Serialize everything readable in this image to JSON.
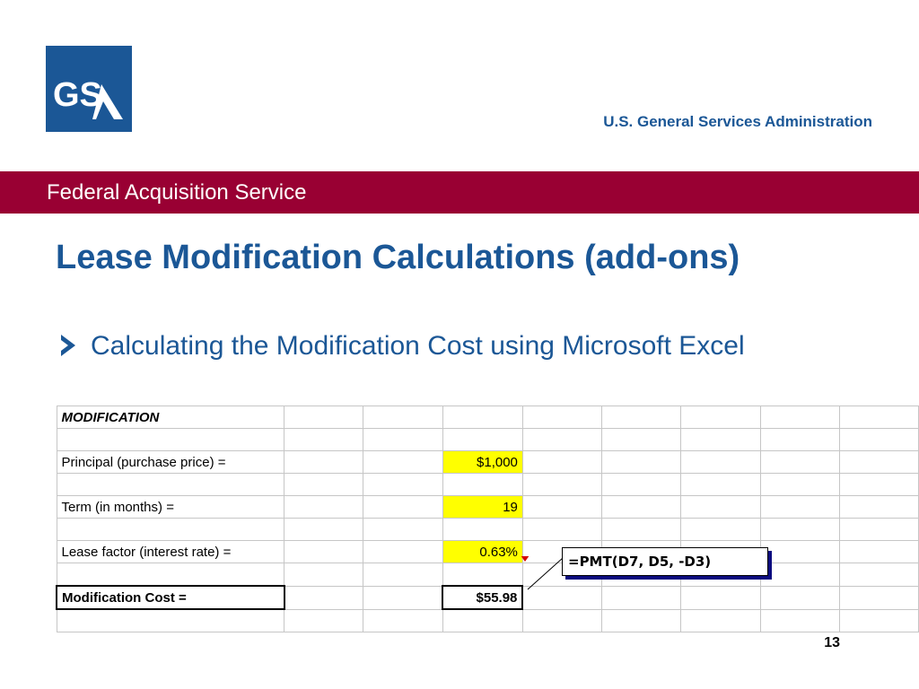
{
  "logo": {
    "text": "GSA"
  },
  "header": {
    "agency": "U.S. General Services Administration"
  },
  "banner": {
    "service": "Federal Acquisition Service"
  },
  "slide": {
    "title": "Lease Modification Calculations (add-ons)",
    "bullet": "Calculating the Modification Cost using Microsoft Excel",
    "page_number": "13"
  },
  "spreadsheet": {
    "header": "MODIFICATION",
    "rows": [
      {
        "label": "Principal (purchase price) =",
        "value": "$1,000"
      },
      {
        "label": "Term (in months) =",
        "value": "19"
      },
      {
        "label": "Lease factor (interest rate) =",
        "value": "0.63%"
      },
      {
        "label": "Modification Cost =",
        "value": "$55.98"
      }
    ]
  },
  "callout": {
    "formula": "=PMT(D7, D5, -D3)"
  },
  "colors": {
    "brand_blue": "#1b5796",
    "banner_maroon": "#990033",
    "input_highlight": "#ffff00"
  }
}
